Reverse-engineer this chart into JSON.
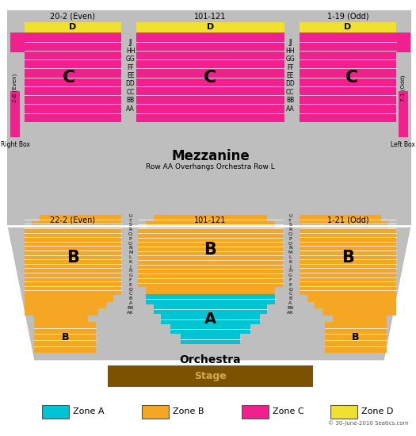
{
  "bg_color": "#bebebe",
  "white_bg": "#ffffff",
  "zone_a_color": "#00c4d4",
  "zone_b_color": "#f5a623",
  "zone_c_color": "#f0208c",
  "zone_d_color": "#f0e030",
  "stage_color": "#7a5200",
  "stage_text_color": "#d4a84b",
  "title_mezzanine": "Mezzanine",
  "subtitle_mezzanine": "Row AA Overhangs Orchestra Row L",
  "title_orchestra": "Orchestra",
  "stage_label": "Stage",
  "left_mezz_label": "20-2 (Even)",
  "center_mezz_label": "101-121",
  "right_mezz_label": "1-19 (Odd)",
  "left_orch_label": "22-2 (Even)",
  "center_orch_label": "101-121",
  "right_orch_label": "1-21 (Odd)",
  "right_box_label": "2-8 (Even)",
  "right_box_sub": "Right Box",
  "left_box_label": "7-1 (Odd)",
  "left_box_sub": "Left Box",
  "copyright": "© 30-June-2010 Seatics.com",
  "mezz_row_labels": "JJ\nHH\nGG\nFF\nEE\nDD\nCC\nBB\nAA",
  "orch_row_labels": "U\nT\nS\nR\nQ\nP\nO\nN\nM\nL\nK\nJ\nH\nG\nF\nE\nD\nC\nB\nA\nBX\nAX"
}
